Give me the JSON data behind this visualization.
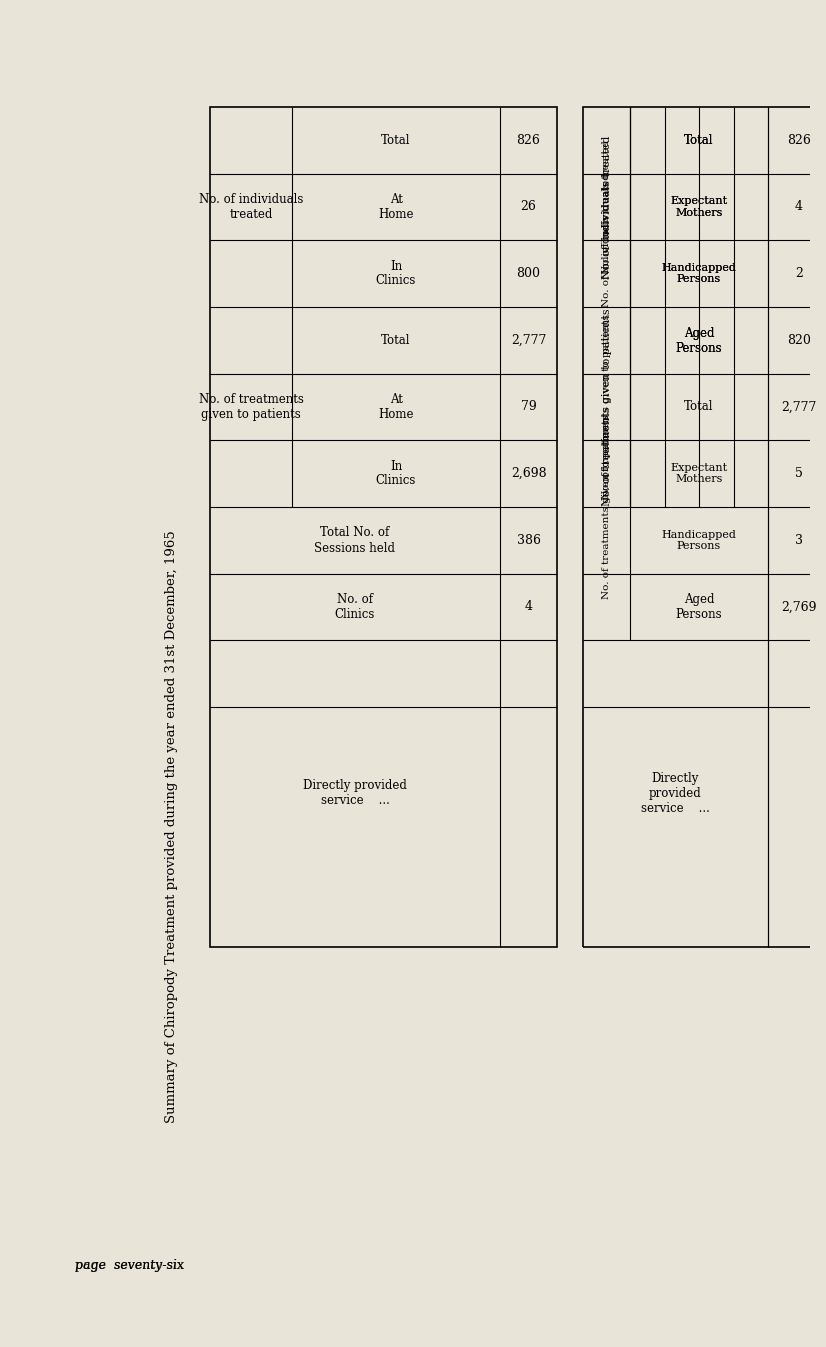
{
  "title": "Summary of Chiropody Treatment provided during the year ended 31st December, 1965",
  "background_color": "#e8e4d8",
  "page_label": "page  seventy-six",
  "table1": {
    "no_of_clinics": "4",
    "total_sessions": "386",
    "treatments_in_clinics": "2,698",
    "treatments_at_home": "79",
    "treatments_total": "2,777",
    "individuals_in_clinics": "800",
    "individuals_at_home": "26",
    "individuals_total": "826"
  },
  "table2": {
    "aged_persons_treatments": "2,769",
    "handicapped_persons_treatments": "3",
    "expectant_mothers_treatments": "5",
    "total_treatments": "2,777",
    "aged_persons_individuals": "820",
    "handicapped_persons_individuals": "2",
    "expectant_mothers_individuals": "4",
    "total_individuals": "826"
  }
}
